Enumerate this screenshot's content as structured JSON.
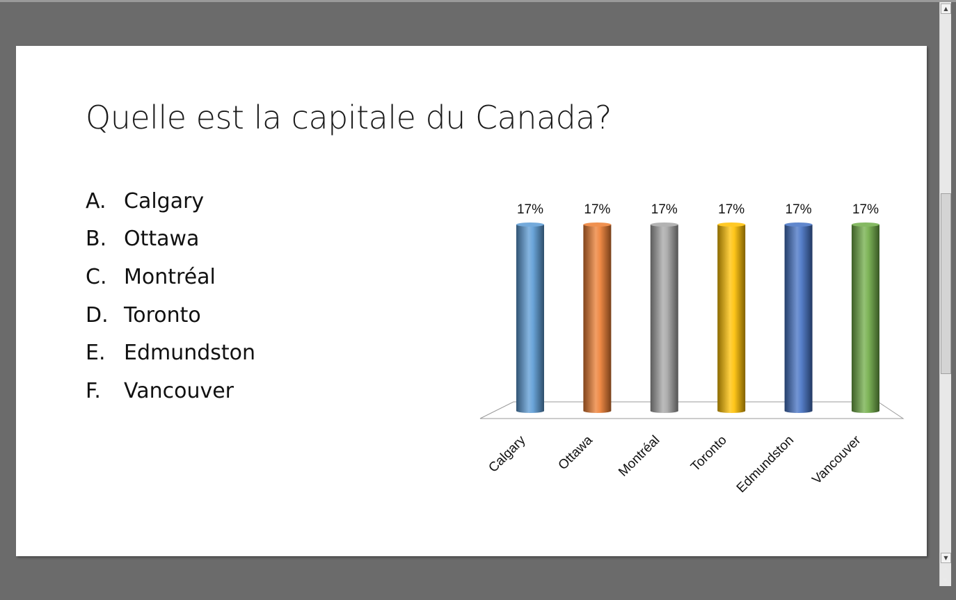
{
  "slide": {
    "title": "Quelle est la capitale du Canada?",
    "options": [
      {
        "letter": "A.",
        "text": "Calgary"
      },
      {
        "letter": "B.",
        "text": "Ottawa"
      },
      {
        "letter": "C.",
        "text": "Montréal"
      },
      {
        "letter": "D.",
        "text": "Toronto"
      },
      {
        "letter": "E.",
        "text": "Edmundston"
      },
      {
        "letter": "F.",
        "text": "Vancouver"
      }
    ]
  },
  "chart_data": {
    "type": "bar",
    "style": "3d-cylinder",
    "categories": [
      "Calgary",
      "Ottawa",
      "Montréal",
      "Toronto",
      "Edmundston",
      "Vancouver"
    ],
    "values": [
      17,
      17,
      17,
      17,
      17,
      17
    ],
    "data_labels": [
      "17%",
      "17%",
      "17%",
      "17%",
      "17%",
      "17%"
    ],
    "unit": "%",
    "colors": [
      "#5b9bd5",
      "#ed7d31",
      "#a5a5a5",
      "#ffc000",
      "#4472c4",
      "#70ad47"
    ],
    "title": "",
    "xlabel": "",
    "ylabel": "",
    "ylim": [
      0,
      17
    ],
    "grid": false,
    "legend": "none"
  },
  "scrollbar": {
    "up_icon": "triangle-up",
    "down_icon": "triangle-down",
    "prev_page_icon": "double-chevron-up",
    "next_page_icon": "double-chevron-down"
  },
  "colors": {
    "workspace": "#6b6b6b",
    "slide": "#ffffff"
  }
}
